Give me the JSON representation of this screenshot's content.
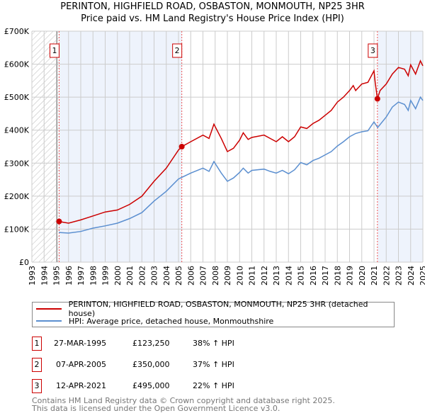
{
  "title_line1": "PERINTON, HIGHFIELD ROAD, OSBASTON, MONMOUTH, NP25 3HR",
  "title_line2": "Price paid vs. HM Land Registry's House Price Index (HPI)",
  "chart_data": {
    "type": "line",
    "title": "PERINTON, HIGHFIELD ROAD, OSBASTON, MONMOUTH, NP25 3HR — Price paid vs. HM Land Registry's House Price Index (HPI)",
    "xlim": [
      1993,
      2025
    ],
    "ylim": [
      0,
      700000
    ],
    "x_ticks": [
      "1993",
      "1994",
      "1995",
      "1996",
      "1997",
      "1998",
      "1999",
      "2000",
      "2001",
      "2002",
      "2003",
      "2004",
      "2005",
      "2006",
      "2007",
      "2008",
      "2009",
      "2010",
      "2011",
      "2012",
      "2013",
      "2014",
      "2015",
      "2016",
      "2017",
      "2018",
      "2019",
      "2020",
      "2021",
      "2022",
      "2023",
      "2024",
      "2025"
    ],
    "y_ticks": [
      {
        "v": 0,
        "label": "£0"
      },
      {
        "v": 100000,
        "label": "£100K"
      },
      {
        "v": 200000,
        "label": "£200K"
      },
      {
        "v": 300000,
        "label": "£300K"
      },
      {
        "v": 400000,
        "label": "£400K"
      },
      {
        "v": 500000,
        "label": "£500K"
      },
      {
        "v": 600000,
        "label": "£600K"
      },
      {
        "v": 700000,
        "label": "£700K"
      }
    ],
    "grid": true,
    "series": [
      {
        "name": "PERINTON, HIGHFIELD ROAD, OSBASTON, MONMOUTH, NP25 3HR (detached house)",
        "color": "#cc0000",
        "x": [
          1995.2,
          1996,
          1997,
          1998,
          1999,
          2000,
          2001,
          2002,
          2003,
          2004,
          2005,
          2005.27,
          2006,
          2007,
          2007.5,
          2007.9,
          2008.5,
          2009,
          2009.5,
          2010,
          2010.3,
          2010.7,
          2011,
          2012,
          2012.5,
          2013,
          2013.5,
          2014,
          2014.5,
          2015,
          2015.5,
          2016,
          2016.5,
          2017,
          2017.5,
          2018,
          2018.5,
          2019,
          2019.3,
          2019.5,
          2020,
          2020.5,
          2021,
          2021.1,
          2021.28,
          2021.5,
          2022,
          2022.5,
          2023,
          2023.5,
          2023.8,
          2024,
          2024.4,
          2024.8,
          2025
        ],
        "y": [
          123250,
          118000,
          128000,
          140000,
          152000,
          158000,
          175000,
          200000,
          245000,
          285000,
          340000,
          350000,
          365000,
          385000,
          375000,
          418000,
          375000,
          335000,
          345000,
          370000,
          392000,
          372000,
          378000,
          385000,
          375000,
          365000,
          380000,
          365000,
          380000,
          410000,
          405000,
          420000,
          430000,
          445000,
          460000,
          485000,
          500000,
          520000,
          535000,
          520000,
          540000,
          545000,
          580000,
          545000,
          495000,
          520000,
          540000,
          570000,
          590000,
          585000,
          565000,
          598000,
          570000,
          610000,
          595000
        ]
      },
      {
        "name": "HPI: Average price, detached house, Monmouthshire",
        "color": "#5b8fd0",
        "x": [
          1995.2,
          1996,
          1997,
          1998,
          1999,
          2000,
          2001,
          2002,
          2003,
          2004,
          2005,
          2006,
          2007,
          2007.5,
          2007.9,
          2008.5,
          2009,
          2009.5,
          2010,
          2010.3,
          2010.7,
          2011,
          2012,
          2012.5,
          2013,
          2013.5,
          2014,
          2014.5,
          2015,
          2015.5,
          2016,
          2016.5,
          2017,
          2017.5,
          2018,
          2018.5,
          2019,
          2019.5,
          2020,
          2020.5,
          2021,
          2021.3,
          2022,
          2022.5,
          2023,
          2023.5,
          2023.8,
          2024,
          2024.4,
          2024.8,
          2025
        ],
        "y": [
          90000,
          88000,
          93000,
          103000,
          110000,
          118000,
          132000,
          150000,
          185000,
          215000,
          252000,
          270000,
          285000,
          275000,
          305000,
          270000,
          245000,
          255000,
          272000,
          285000,
          270000,
          278000,
          282000,
          275000,
          270000,
          278000,
          268000,
          280000,
          302000,
          295000,
          308000,
          315000,
          325000,
          335000,
          352000,
          365000,
          380000,
          390000,
          395000,
          398000,
          425000,
          408000,
          440000,
          470000,
          485000,
          478000,
          460000,
          490000,
          465000,
          500000,
          490000
        ]
      }
    ],
    "sales": [
      {
        "n": "1",
        "x": 1995.23,
        "y": 123250,
        "date": "27-MAR-1995",
        "price": "£123,250",
        "hpi": "38% ↑ HPI"
      },
      {
        "n": "2",
        "x": 2005.27,
        "y": 350000,
        "date": "07-APR-2005",
        "price": "£350,000",
        "hpi": "37% ↑ HPI"
      },
      {
        "n": "3",
        "x": 2021.28,
        "y": 495000,
        "date": "12-APR-2021",
        "price": "£495,000",
        "hpi": "22% ↑ HPI"
      }
    ],
    "legend_position": "below"
  },
  "footer_line1": "Contains HM Land Registry data © Crown copyright and database right 2025.",
  "footer_line2": "This data is licensed under the Open Government Licence v3.0."
}
